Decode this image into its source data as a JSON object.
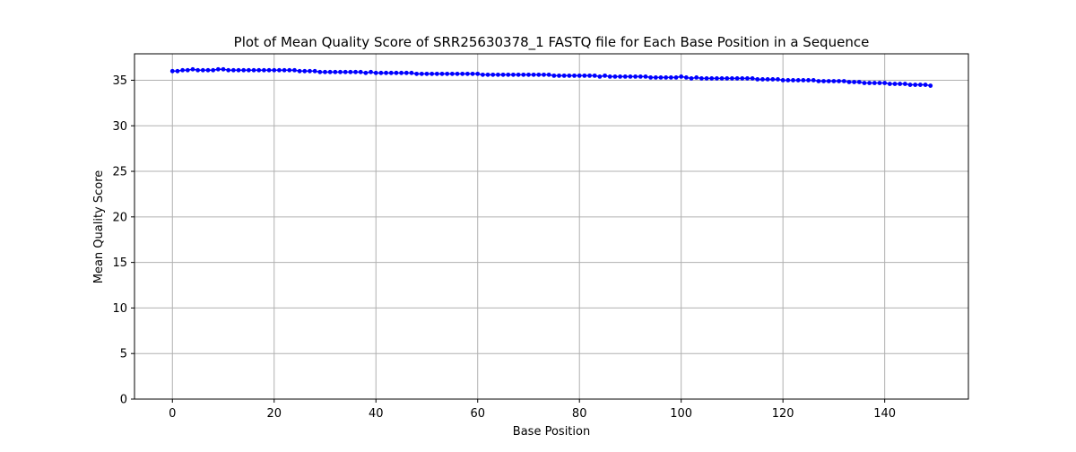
{
  "chart_data": {
    "type": "line",
    "title": "Plot of Mean Quality Score of SRR25630378_1 FASTQ file for Each Base Position in a Sequence",
    "xlabel": "Base Position",
    "ylabel": "Mean Quality Score",
    "xlim": [
      -7.45,
      156.45
    ],
    "ylim": [
      0,
      37.9
    ],
    "xticks": [
      0,
      20,
      40,
      60,
      80,
      100,
      120,
      140
    ],
    "yticks": [
      0,
      5,
      10,
      15,
      20,
      25,
      30,
      35
    ],
    "grid": true,
    "marker": "circle",
    "series": [
      {
        "color": "#0000ff",
        "x": [
          0,
          1,
          2,
          3,
          4,
          5,
          6,
          7,
          8,
          9,
          10,
          11,
          12,
          13,
          14,
          15,
          16,
          17,
          18,
          19,
          20,
          21,
          22,
          23,
          24,
          25,
          26,
          27,
          28,
          29,
          30,
          31,
          32,
          33,
          34,
          35,
          36,
          37,
          38,
          39,
          40,
          41,
          42,
          43,
          44,
          45,
          46,
          47,
          48,
          49,
          50,
          51,
          52,
          53,
          54,
          55,
          56,
          57,
          58,
          59,
          60,
          61,
          62,
          63,
          64,
          65,
          66,
          67,
          68,
          69,
          70,
          71,
          72,
          73,
          74,
          75,
          76,
          77,
          78,
          79,
          80,
          81,
          82,
          83,
          84,
          85,
          86,
          87,
          88,
          89,
          90,
          91,
          92,
          93,
          94,
          95,
          96,
          97,
          98,
          99,
          100,
          101,
          102,
          103,
          104,
          105,
          106,
          107,
          108,
          109,
          110,
          111,
          112,
          113,
          114,
          115,
          116,
          117,
          118,
          119,
          120,
          121,
          122,
          123,
          124,
          125,
          126,
          127,
          128,
          129,
          130,
          131,
          132,
          133,
          134,
          135,
          136,
          137,
          138,
          139,
          140,
          141,
          142,
          143,
          144,
          145,
          146,
          147,
          148,
          149
        ],
        "values": [
          36.0,
          36.0,
          36.1,
          36.1,
          36.2,
          36.1,
          36.1,
          36.1,
          36.1,
          36.2,
          36.2,
          36.1,
          36.1,
          36.1,
          36.1,
          36.1,
          36.1,
          36.1,
          36.1,
          36.1,
          36.1,
          36.1,
          36.1,
          36.1,
          36.1,
          36.0,
          36.0,
          36.0,
          36.0,
          35.9,
          35.9,
          35.9,
          35.9,
          35.9,
          35.9,
          35.9,
          35.9,
          35.9,
          35.8,
          35.9,
          35.8,
          35.8,
          35.8,
          35.8,
          35.8,
          35.8,
          35.8,
          35.8,
          35.7,
          35.7,
          35.7,
          35.7,
          35.7,
          35.7,
          35.7,
          35.7,
          35.7,
          35.7,
          35.7,
          35.7,
          35.7,
          35.6,
          35.6,
          35.6,
          35.6,
          35.6,
          35.6,
          35.6,
          35.6,
          35.6,
          35.6,
          35.6,
          35.6,
          35.6,
          35.6,
          35.5,
          35.5,
          35.5,
          35.5,
          35.5,
          35.5,
          35.5,
          35.5,
          35.5,
          35.4,
          35.5,
          35.4,
          35.4,
          35.4,
          35.4,
          35.4,
          35.4,
          35.4,
          35.4,
          35.3,
          35.3,
          35.3,
          35.3,
          35.3,
          35.3,
          35.4,
          35.3,
          35.2,
          35.3,
          35.2,
          35.2,
          35.2,
          35.2,
          35.2,
          35.2,
          35.2,
          35.2,
          35.2,
          35.2,
          35.2,
          35.1,
          35.1,
          35.1,
          35.1,
          35.1,
          35.0,
          35.0,
          35.0,
          35.0,
          35.0,
          35.0,
          35.0,
          34.9,
          34.9,
          34.9,
          34.9,
          34.9,
          34.9,
          34.8,
          34.8,
          34.8,
          34.7,
          34.7,
          34.7,
          34.7,
          34.7,
          34.6,
          34.6,
          34.6,
          34.6,
          34.5,
          34.5,
          34.5,
          34.5,
          34.4
        ]
      }
    ]
  }
}
